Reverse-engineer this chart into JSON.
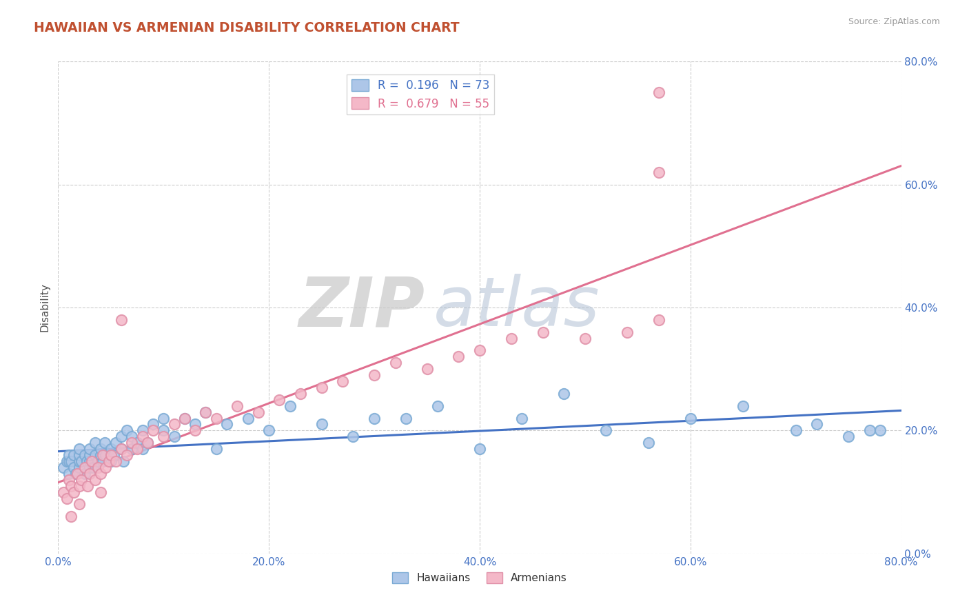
{
  "title": "HAWAIIAN VS ARMENIAN DISABILITY CORRELATION CHART",
  "source": "Source: ZipAtlas.com",
  "ylabel": "Disability",
  "series": [
    {
      "name": "Hawaiians",
      "R": 0.196,
      "N": 73,
      "line_color": "#4472c4",
      "marker_face": "#adc6e8",
      "marker_edge": "#7aaad4"
    },
    {
      "name": "Armenians",
      "R": 0.679,
      "N": 55,
      "line_color": "#e07090",
      "marker_face": "#f4b8c8",
      "marker_edge": "#e090a8"
    }
  ],
  "xlim": [
    0.0,
    0.8
  ],
  "ylim": [
    0.0,
    0.8
  ],
  "xticks": [
    0.0,
    0.2,
    0.4,
    0.6,
    0.8
  ],
  "yticks": [
    0.0,
    0.2,
    0.4,
    0.6,
    0.8
  ],
  "xticklabels": [
    "0.0%",
    "20.0%",
    "40.0%",
    "60.0%",
    "80.0%"
  ],
  "yticklabels_right": [
    "0.0%",
    "20.0%",
    "40.0%",
    "60.0%",
    "80.0%"
  ],
  "watermark_zip": "ZIP",
  "watermark_atlas": "atlas",
  "background_color": "#ffffff",
  "grid_color": "#cccccc",
  "title_color": "#c05030",
  "tick_color": "#4472c4",
  "hawaiians_x": [
    0.005,
    0.008,
    0.01,
    0.01,
    0.01,
    0.012,
    0.015,
    0.015,
    0.017,
    0.02,
    0.02,
    0.02,
    0.02,
    0.022,
    0.025,
    0.025,
    0.027,
    0.03,
    0.03,
    0.03,
    0.03,
    0.033,
    0.035,
    0.035,
    0.038,
    0.04,
    0.04,
    0.042,
    0.044,
    0.045,
    0.05,
    0.05,
    0.053,
    0.055,
    0.06,
    0.06,
    0.062,
    0.065,
    0.07,
    0.07,
    0.075,
    0.08,
    0.08,
    0.085,
    0.09,
    0.1,
    0.1,
    0.11,
    0.12,
    0.13,
    0.14,
    0.15,
    0.16,
    0.18,
    0.2,
    0.22,
    0.25,
    0.28,
    0.3,
    0.33,
    0.36,
    0.4,
    0.44,
    0.48,
    0.52,
    0.56,
    0.6,
    0.65,
    0.7,
    0.72,
    0.75,
    0.77,
    0.78
  ],
  "hawaiians_y": [
    0.14,
    0.15,
    0.13,
    0.15,
    0.16,
    0.15,
    0.14,
    0.16,
    0.13,
    0.14,
    0.15,
    0.16,
    0.17,
    0.15,
    0.13,
    0.16,
    0.15,
    0.14,
    0.15,
    0.16,
    0.17,
    0.14,
    0.16,
    0.18,
    0.15,
    0.16,
    0.17,
    0.15,
    0.18,
    0.16,
    0.15,
    0.17,
    0.16,
    0.18,
    0.17,
    0.19,
    0.15,
    0.2,
    0.17,
    0.19,
    0.18,
    0.17,
    0.2,
    0.18,
    0.21,
    0.2,
    0.22,
    0.19,
    0.22,
    0.21,
    0.23,
    0.17,
    0.21,
    0.22,
    0.2,
    0.24,
    0.21,
    0.19,
    0.22,
    0.22,
    0.24,
    0.17,
    0.22,
    0.26,
    0.2,
    0.18,
    0.22,
    0.24,
    0.2,
    0.21,
    0.19,
    0.2,
    0.2
  ],
  "armenians_x": [
    0.005,
    0.008,
    0.01,
    0.012,
    0.015,
    0.018,
    0.02,
    0.022,
    0.025,
    0.028,
    0.03,
    0.032,
    0.035,
    0.038,
    0.04,
    0.042,
    0.045,
    0.048,
    0.05,
    0.055,
    0.06,
    0.065,
    0.07,
    0.075,
    0.08,
    0.085,
    0.09,
    0.1,
    0.11,
    0.12,
    0.13,
    0.14,
    0.15,
    0.17,
    0.19,
    0.21,
    0.23,
    0.25,
    0.27,
    0.3,
    0.32,
    0.35,
    0.38,
    0.4,
    0.43,
    0.46,
    0.5,
    0.54,
    0.57,
    0.012,
    0.02,
    0.04,
    0.06,
    0.57,
    0.57
  ],
  "armenians_y": [
    0.1,
    0.09,
    0.12,
    0.11,
    0.1,
    0.13,
    0.11,
    0.12,
    0.14,
    0.11,
    0.13,
    0.15,
    0.12,
    0.14,
    0.13,
    0.16,
    0.14,
    0.15,
    0.16,
    0.15,
    0.17,
    0.16,
    0.18,
    0.17,
    0.19,
    0.18,
    0.2,
    0.19,
    0.21,
    0.22,
    0.2,
    0.23,
    0.22,
    0.24,
    0.23,
    0.25,
    0.26,
    0.27,
    0.28,
    0.29,
    0.31,
    0.3,
    0.32,
    0.33,
    0.35,
    0.36,
    0.35,
    0.36,
    0.38,
    0.06,
    0.08,
    0.1,
    0.38,
    0.62,
    0.75
  ]
}
